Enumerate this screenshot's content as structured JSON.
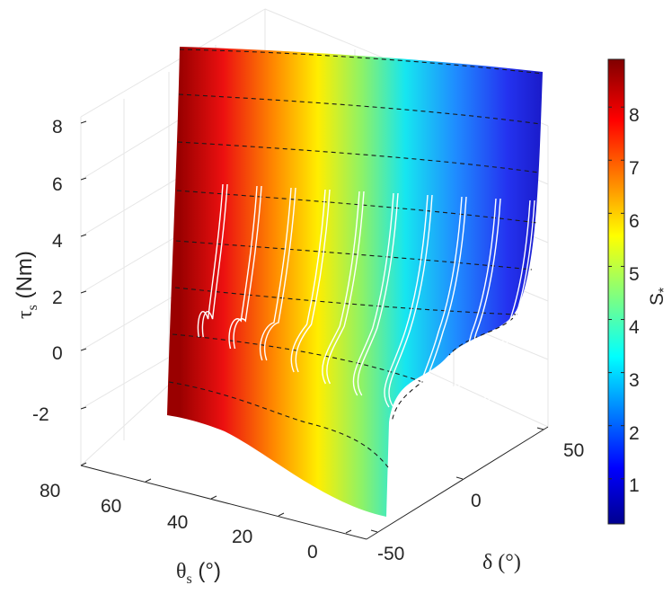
{
  "chart_data": {
    "type": "surface",
    "title": "",
    "zlabel": "τ",
    "zlabel_sub": "s",
    "zlabel_unit": " (Nm)",
    "xlabel": "θ",
    "xlabel_sub": "s",
    "xlabel_unit": " (°)",
    "ylabel": "δ (°)",
    "colorbar_label": "S",
    "colorbar_sub": "*",
    "z_ticks": [
      "-2",
      "0",
      "2",
      "4",
      "6",
      "8"
    ],
    "theta_ticks": [
      "80",
      "60",
      "40",
      "20",
      "0"
    ],
    "delta_ticks": [
      "50",
      "0",
      "-50"
    ],
    "colorbar_ticks": [
      "1",
      "2",
      "3",
      "4",
      "5",
      "6",
      "7",
      "8"
    ],
    "colorbar_range": [
      0.15,
      8.9
    ],
    "colormap": "jet",
    "grid": true,
    "measured_trace_count": 10
  }
}
